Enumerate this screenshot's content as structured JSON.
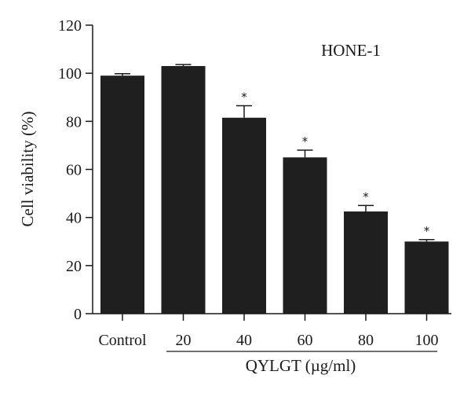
{
  "chart_data": {
    "type": "bar",
    "categories": [
      "Control",
      "20",
      "40",
      "60",
      "80",
      "100"
    ],
    "values": [
      99,
      103,
      81.5,
      65,
      42.5,
      30
    ],
    "errors": [
      0.8,
      0.6,
      5,
      3,
      2.5,
      0.8
    ],
    "significant": [
      false,
      false,
      true,
      true,
      true,
      true
    ],
    "significance_marker": "*",
    "ylabel": "Cell viability (%)",
    "xlabel": "QYLGT (µg/ml)",
    "annotation": "HONE-1",
    "ylim": [
      0,
      120
    ],
    "yticks": [
      0,
      20,
      40,
      60,
      80,
      100,
      120
    ],
    "bar_color": "#1f1f1f",
    "grid": false,
    "legend": "none"
  }
}
